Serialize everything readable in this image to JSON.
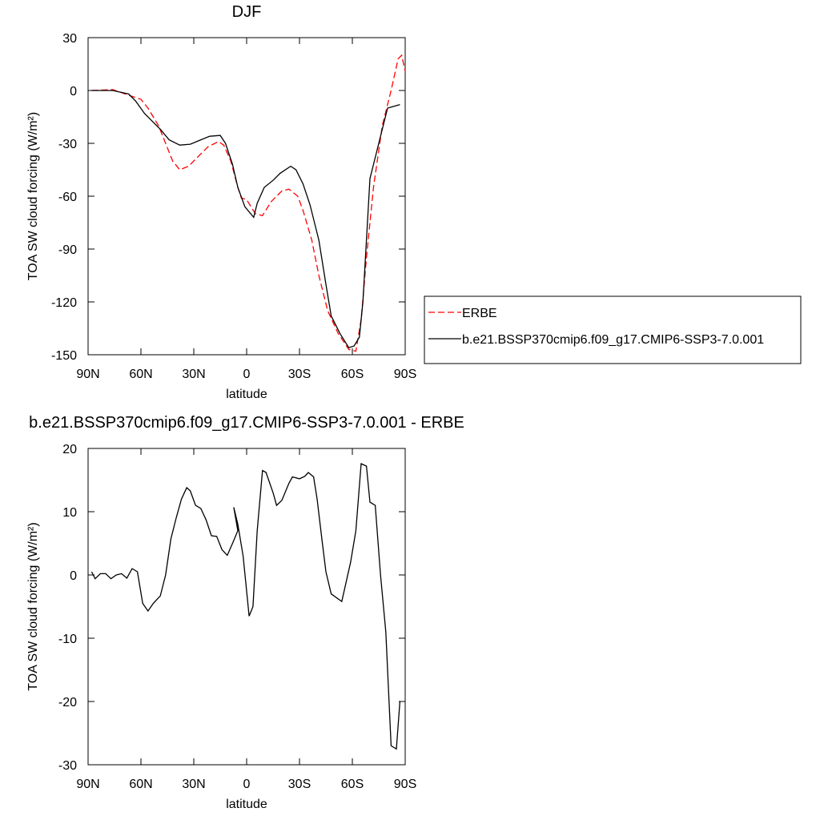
{
  "chart_data": [
    {
      "type": "line",
      "title": "DJF",
      "xlabel": "latitude",
      "ylabel": "TOA SW cloud forcing (W/m²)",
      "xlim": [
        90,
        -90
      ],
      "ylim": [
        30,
        -150
      ],
      "xticks": [
        {
          "value": 90,
          "label": "90N"
        },
        {
          "value": 60,
          "label": "60N"
        },
        {
          "value": 30,
          "label": "30N"
        },
        0,
        {
          "value": -30,
          "label": "30S"
        },
        {
          "value": -60,
          "label": "60S"
        },
        {
          "value": -90,
          "label": "90S"
        }
      ],
      "yticks": [
        30,
        0,
        -30,
        -60,
        -90,
        -120,
        -150
      ],
      "legend": "right",
      "series": [
        {
          "name": "ERBE",
          "color": "#ff0000",
          "style": "dashed",
          "x": [
            88,
            76,
            66,
            60,
            56,
            50,
            46,
            42,
            38,
            33,
            28,
            22,
            16,
            13,
            9,
            5,
            3,
            0,
            -5,
            -9,
            -14,
            -20,
            -24,
            -29,
            -32,
            -37,
            -41,
            -46,
            -52,
            -58,
            -62,
            -65,
            -68,
            -72,
            -77,
            -82,
            -86,
            -88,
            -90
          ],
          "values": [
            0,
            0.5,
            -3,
            -5,
            -10,
            -20,
            -30,
            -40,
            -45,
            -43,
            -38,
            -32,
            -29,
            -31,
            -40,
            -55,
            -61,
            -62,
            -70,
            -71,
            -63,
            -57,
            -56,
            -60,
            -68,
            -85,
            -105,
            -125,
            -138,
            -147,
            -148,
            -130,
            -95,
            -55,
            -20,
            0,
            18,
            20,
            11
          ]
        },
        {
          "name": "b.e21.BSSP370cmip6.f09_g17.CMIP6-SSP3-7.0.001",
          "color": "#000000",
          "style": "solid",
          "x": [
            88,
            76,
            67,
            63,
            58,
            54,
            49,
            44,
            38,
            32,
            26,
            21,
            15,
            12,
            8,
            5,
            1,
            -4,
            -6,
            -10,
            -15,
            -19,
            -25,
            -28,
            -32,
            -36,
            -41,
            -45,
            -48,
            -53,
            -58,
            -61,
            -64,
            -66,
            -70,
            -75,
            -80,
            -87
          ],
          "values": [
            0,
            0,
            -2,
            -6,
            -13,
            -17,
            -22,
            -28,
            -31,
            -30.5,
            -28,
            -26,
            -25.5,
            -30,
            -42,
            -55,
            -66,
            -72,
            -64,
            -55,
            -51,
            -47,
            -43,
            -45,
            -53,
            -65,
            -85,
            -110,
            -128,
            -138,
            -146,
            -145,
            -140,
            -120,
            -50,
            -30,
            -10,
            -8
          ]
        }
      ]
    },
    {
      "type": "line",
      "title": "b.e21.BSSP370cmip6.f09_g17.CMIP6-SSP3-7.0.001 - ERBE",
      "xlabel": "latitude",
      "ylabel": "TOA SW cloud forcing (W/m²)",
      "xlim": [
        90,
        -90
      ],
      "ylim": [
        20,
        -30
      ],
      "xticks": [
        {
          "value": 90,
          "label": "90N"
        },
        {
          "value": 60,
          "label": "60N"
        },
        {
          "value": 30,
          "label": "30N"
        },
        0,
        {
          "value": -30,
          "label": "30S"
        },
        {
          "value": -60,
          "label": "60S"
        },
        {
          "value": -90,
          "label": "90S"
        }
      ],
      "yticks": [
        20,
        10,
        0,
        -10,
        -20,
        -30
      ],
      "series": [
        {
          "color": "#000000",
          "style": "solid",
          "x": [
            88,
            86,
            83,
            80,
            77,
            74,
            71,
            68,
            65,
            62,
            59,
            56,
            53,
            49,
            46,
            43,
            40,
            37,
            34,
            32,
            29,
            26,
            23,
            20,
            17,
            14,
            11,
            8,
            5,
            7.3,
            5,
            2,
            -1.4,
            -3.6,
            -6,
            -9,
            -11,
            -15,
            -17,
            -20,
            -24,
            -26,
            -30,
            -33,
            -35,
            -38,
            -40,
            -43,
            -45,
            -48,
            -54,
            -59,
            -62,
            -65,
            -68,
            -70,
            -73,
            -76,
            -79,
            -82,
            -85,
            -87
          ],
          "values": [
            0.5,
            -0.6,
            0.2,
            0.2,
            -0.6,
            0,
            0.2,
            -0.5,
            1,
            0.5,
            -4.5,
            -5.7,
            -4.5,
            -3.3,
            0,
            5.7,
            9,
            12,
            13.8,
            13.3,
            11,
            10.5,
            8.7,
            6.2,
            6.1,
            4,
            3.1,
            5,
            7,
            10.7,
            8,
            3,
            -6.5,
            -5,
            7,
            16.5,
            16.2,
            13,
            11,
            11.8,
            14.5,
            15.5,
            15.2,
            15.6,
            16.2,
            15.5,
            12,
            5,
            0.5,
            -3,
            -4.2,
            2,
            7,
            17.6,
            17.2,
            11.5,
            11,
            0,
            -9,
            -27,
            -27.5,
            -20
          ]
        }
      ]
    }
  ]
}
